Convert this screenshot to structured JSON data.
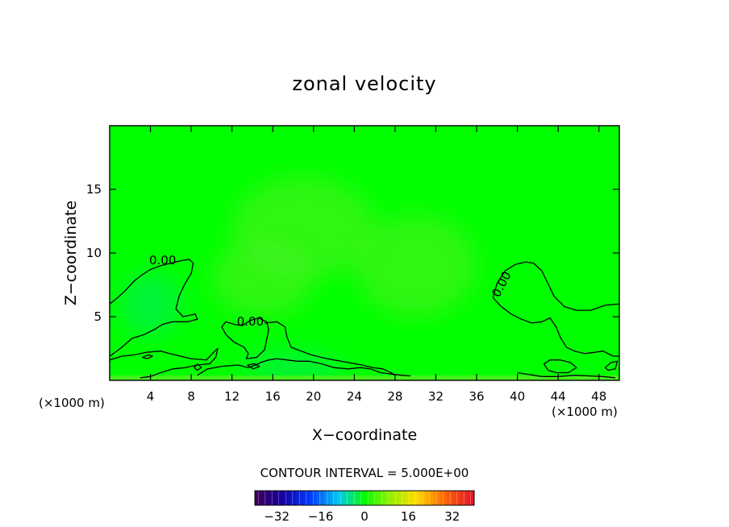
{
  "chart_data": {
    "type": "heatmap",
    "title": "zonal velocity",
    "xlabel": "X−coordinate",
    "ylabel": "Z−coordinate",
    "x_unit_left": "(×1000 m)",
    "x_unit_right": "(×1000 m)",
    "xlim": [
      0,
      50
    ],
    "ylim": [
      0,
      20
    ],
    "xticks": [
      4,
      8,
      12,
      16,
      20,
      24,
      28,
      32,
      36,
      40,
      44,
      48
    ],
    "yticks": [
      5,
      10,
      15
    ],
    "contour_label": "0.00",
    "contour_interval_text": "CONTOUR INTERVAL = 5.000E+00",
    "colorbar": {
      "min": -40,
      "max": 40,
      "ticks": [
        "−32",
        "−16",
        "0",
        "16",
        "32"
      ],
      "tick_values": [
        -32,
        -16,
        0,
        16,
        32
      ]
    },
    "field_colors": {
      "background": "#00ff00",
      "weak_positive": "#44f21c",
      "weak_negative": "#00f050",
      "contour": "#000000"
    },
    "zero_contours": [
      [
        [
          0,
          6.0
        ],
        [
          0.8,
          6.5
        ],
        [
          1.6,
          7.1
        ],
        [
          2.4,
          7.8
        ],
        [
          3.2,
          8.3
        ],
        [
          4,
          8.7
        ],
        [
          5,
          9.0
        ],
        [
          6,
          9.2
        ],
        [
          7,
          9.4
        ],
        [
          7.8,
          9.5
        ],
        [
          8.2,
          9.2
        ],
        [
          8,
          8.4
        ],
        [
          7.4,
          7.6
        ],
        [
          6.8,
          6.6
        ],
        [
          6.5,
          5.6
        ],
        [
          7.2,
          5.0
        ],
        [
          8.4,
          5.2
        ],
        [
          8.6,
          4.8
        ],
        [
          7.6,
          4.6
        ],
        [
          6.2,
          4.6
        ],
        [
          5.2,
          4.4
        ],
        [
          4.4,
          4.0
        ],
        [
          3.4,
          3.6
        ],
        [
          2.2,
          3.3
        ],
        [
          1.2,
          2.6
        ],
        [
          0.2,
          2.0
        ],
        [
          0,
          1.9
        ]
      ],
      [
        [
          0,
          1.6
        ],
        [
          1.2,
          1.9
        ],
        [
          2.4,
          2.0
        ],
        [
          3.6,
          2.2
        ],
        [
          5,
          2.3
        ],
        [
          6.4,
          2.0
        ],
        [
          8,
          1.7
        ],
        [
          9.5,
          1.6
        ],
        [
          10.2,
          2.2
        ],
        [
          10.6,
          2.5
        ],
        [
          10.4,
          1.8
        ],
        [
          9.8,
          1.3
        ],
        [
          8.6,
          1.2
        ],
        [
          7.4,
          1.0
        ],
        [
          6.2,
          0.9
        ],
        [
          5,
          0.6
        ],
        [
          4,
          0.3
        ],
        [
          3,
          0.2
        ]
      ],
      [
        [
          8.6,
          0.4
        ],
        [
          9.6,
          0.9
        ],
        [
          11,
          1.1
        ],
        [
          12.6,
          1.2
        ],
        [
          13.6,
          1.0
        ],
        [
          14.3,
          1.2
        ],
        [
          14.8,
          1.4
        ],
        [
          15.6,
          1.6
        ],
        [
          16.4,
          1.7
        ],
        [
          17.4,
          1.6
        ],
        [
          18.4,
          1.5
        ],
        [
          19.6,
          1.5
        ],
        [
          20.8,
          1.3
        ],
        [
          22,
          1.0
        ],
        [
          23.4,
          0.9
        ],
        [
          24.6,
          1.0
        ],
        [
          25.6,
          0.9
        ],
        [
          26.6,
          0.6
        ],
        [
          27.6,
          0.5
        ],
        [
          28.6,
          0.4
        ],
        [
          29.5,
          0.35
        ]
      ],
      [
        [
          11,
          4.2
        ],
        [
          11.4,
          3.6
        ],
        [
          12.2,
          3.0
        ],
        [
          13.2,
          2.6
        ],
        [
          13.6,
          2.1
        ],
        [
          13.4,
          1.7
        ],
        [
          14.4,
          1.8
        ],
        [
          15.2,
          2.4
        ],
        [
          15.4,
          3.2
        ],
        [
          15.6,
          4.0
        ],
        [
          15.4,
          4.6
        ],
        [
          14.6,
          4.9
        ],
        [
          13.8,
          4.7
        ],
        [
          13,
          4.3
        ],
        [
          12.2,
          4.4
        ],
        [
          11.4,
          4.6
        ],
        [
          11,
          4.2
        ]
      ],
      [
        [
          15.2,
          4.5
        ],
        [
          16.4,
          4.6
        ],
        [
          17.2,
          4.2
        ],
        [
          17.4,
          3.4
        ],
        [
          17.8,
          2.6
        ],
        [
          18.8,
          2.3
        ],
        [
          19.8,
          2.0
        ],
        [
          20.8,
          1.8
        ],
        [
          22,
          1.6
        ],
        [
          23.4,
          1.4
        ],
        [
          24.8,
          1.2
        ],
        [
          25.8,
          1.0
        ],
        [
          26.8,
          0.9
        ],
        [
          27.6,
          0.6
        ],
        [
          28,
          0.4
        ]
      ],
      [
        [
          40,
          0.6
        ],
        [
          40.8,
          0.5
        ],
        [
          41.6,
          0.4
        ],
        [
          42.4,
          0.3
        ],
        [
          44,
          0.3
        ],
        [
          45.6,
          0.4
        ],
        [
          47,
          0.35
        ],
        [
          48.4,
          0.3
        ],
        [
          49.6,
          0.2
        ]
      ],
      [
        [
          37.6,
          6.5
        ],
        [
          38,
          7.6
        ],
        [
          38.8,
          8.6
        ],
        [
          39.8,
          9.1
        ],
        [
          40.8,
          9.3
        ],
        [
          41.6,
          9.2
        ],
        [
          42.4,
          8.6
        ],
        [
          43,
          7.6
        ],
        [
          43.6,
          6.6
        ],
        [
          44.6,
          5.8
        ],
        [
          45.8,
          5.5
        ],
        [
          47.2,
          5.5
        ],
        [
          48.6,
          5.9
        ],
        [
          50,
          6.0
        ]
      ],
      [
        [
          37.6,
          6.5
        ],
        [
          38.4,
          5.8
        ],
        [
          39.4,
          5.2
        ],
        [
          40.4,
          4.8
        ],
        [
          41.4,
          4.5
        ],
        [
          42.4,
          4.6
        ],
        [
          43.2,
          4.9
        ],
        [
          43.8,
          4.2
        ],
        [
          44.2,
          3.4
        ],
        [
          44.8,
          2.6
        ],
        [
          45.6,
          2.3
        ],
        [
          46.6,
          2.1
        ],
        [
          47.6,
          2.2
        ],
        [
          48.4,
          2.3
        ],
        [
          49.4,
          1.9
        ],
        [
          50,
          1.9
        ]
      ],
      [
        [
          42.6,
          1.3
        ],
        [
          43.2,
          1.6
        ],
        [
          44.2,
          1.6
        ],
        [
          45.2,
          1.4
        ],
        [
          45.8,
          1.0
        ],
        [
          45,
          0.6
        ],
        [
          43.8,
          0.6
        ],
        [
          43,
          0.8
        ],
        [
          42.6,
          1.3
        ]
      ],
      [
        [
          48.6,
          1.0
        ],
        [
          49.2,
          1.4
        ],
        [
          49.8,
          1.5
        ],
        [
          49.6,
          0.9
        ],
        [
          48.9,
          0.8
        ],
        [
          48.6,
          1.0
        ]
      ],
      [
        [
          3.2,
          1.8
        ],
        [
          3.8,
          2.0
        ],
        [
          4.2,
          1.9
        ],
        [
          3.7,
          1.7
        ],
        [
          3.2,
          1.8
        ]
      ],
      [
        [
          8.6,
          1.3
        ],
        [
          9.0,
          1.0
        ],
        [
          8.6,
          0.8
        ],
        [
          8.3,
          1.0
        ],
        [
          8.6,
          1.3
        ]
      ],
      [
        [
          13.5,
          1.2
        ],
        [
          14.2,
          1.3
        ],
        [
          14.7,
          1.1
        ],
        [
          14.1,
          0.9
        ],
        [
          13.5,
          1.2
        ]
      ]
    ],
    "zero_label_positions": [
      [
        5.2,
        9.1
      ],
      [
        13.8,
        4.3
      ],
      [
        38.8,
        7.4
      ]
    ]
  }
}
